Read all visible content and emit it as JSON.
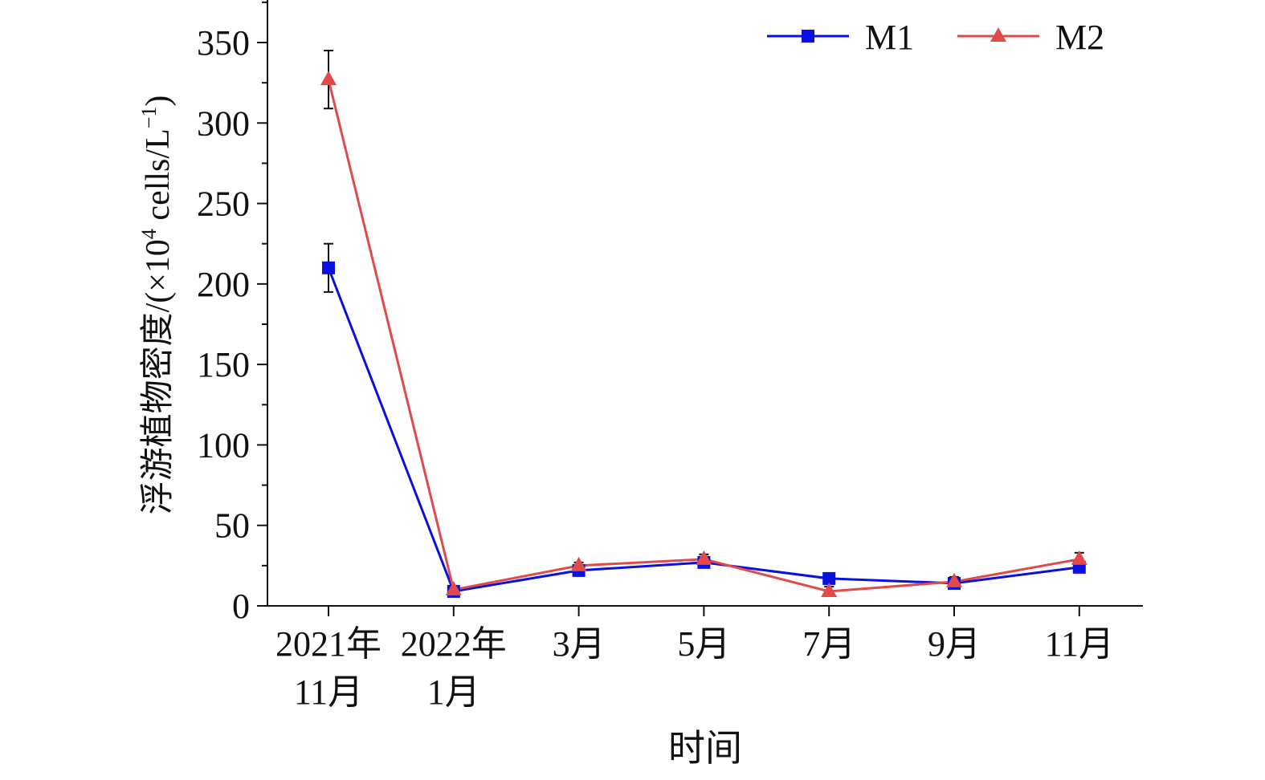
{
  "chart_data": {
    "type": "line",
    "title": "",
    "xlabel": "时间",
    "ylabel_main": "浮游植物密度/(×10",
    "ylabel_sup": "4",
    "ylabel_mid": " cells/L",
    "ylabel_sup2": "−1",
    "ylabel_end": ")",
    "ylim": [
      0,
      375
    ],
    "yticks": [
      "0",
      "50",
      "100",
      "150",
      "200",
      "250",
      "300",
      "350"
    ],
    "categories": [
      [
        "2021年",
        "11月"
      ],
      [
        "2022年",
        "1月"
      ],
      [
        "3月"
      ],
      [
        "5月"
      ],
      [
        "7月"
      ],
      [
        "9月"
      ],
      [
        "11月"
      ]
    ],
    "legend_position": "top-right",
    "series": [
      {
        "name": "M1",
        "color": "#0a10e0",
        "marker": "square",
        "values": [
          210,
          9,
          22,
          27,
          17,
          14,
          24
        ],
        "errors": [
          15,
          2,
          2,
          2,
          2,
          2,
          2
        ]
      },
      {
        "name": "M2",
        "color": "#e24a4a",
        "marker": "triangle",
        "values": [
          327,
          10,
          25,
          29,
          9,
          15,
          29
        ],
        "errors": [
          18,
          2,
          2,
          3,
          3,
          3,
          4
        ]
      }
    ]
  }
}
